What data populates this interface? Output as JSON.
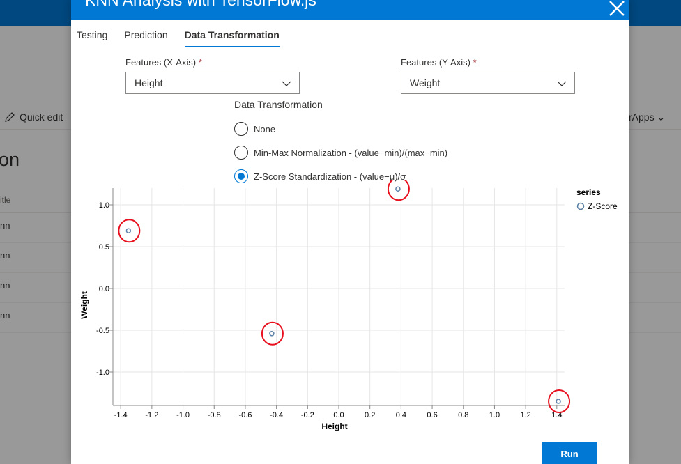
{
  "background": {
    "quick_edit_label": "Quick edit",
    "right_apps_label": "rApps",
    "page_title_fragment": "on",
    "column_header_fragment": "itle",
    "row_fragments": [
      "nn",
      "nn",
      "nn",
      "nn"
    ]
  },
  "dialog": {
    "title": "KNN Analysis with TensorFlow.js",
    "tabs": [
      {
        "label": "Testing",
        "active": false
      },
      {
        "label": "Prediction",
        "active": false
      },
      {
        "label": "Data Transformation",
        "active": true
      }
    ],
    "x_feature": {
      "label": "Features (X-Axis)",
      "required_mark": "*",
      "value": "Height"
    },
    "y_feature": {
      "label": "Features (Y-Axis)",
      "required_mark": "*",
      "value": "Weight"
    },
    "transformation": {
      "label": "Data Transformation",
      "options": [
        {
          "label": "None",
          "selected": false
        },
        {
          "label": "Min-Max Normalization - (value−min)/(max−min)",
          "selected": false
        },
        {
          "label": "Z-Score Standardization - (value−μ)/σ",
          "selected": true
        }
      ]
    },
    "run_label": "Run"
  },
  "chart_data": {
    "type": "scatter",
    "xlabel": "Height",
    "ylabel": "Weight",
    "xlim": [
      -1.45,
      1.45
    ],
    "ylim": [
      -1.4,
      1.2
    ],
    "x_ticks": [
      -1.4,
      -1.2,
      -1.0,
      -0.8,
      -0.6,
      -0.4,
      -0.2,
      0.0,
      0.2,
      0.4,
      0.6,
      0.8,
      1.0,
      1.2,
      1.4
    ],
    "y_ticks": [
      1.0,
      0.5,
      0.0,
      -0.5,
      -1.0
    ],
    "legend_title": "series",
    "legend_position": "top-right",
    "grid": true,
    "series": [
      {
        "name": "Z-Score",
        "color": "#5b7fa6",
        "points": [
          {
            "x": -1.35,
            "y": 0.69
          },
          {
            "x": -0.43,
            "y": -0.54
          },
          {
            "x": 0.38,
            "y": 1.19
          },
          {
            "x": 1.41,
            "y": -1.35
          }
        ]
      }
    ],
    "highlight_color": "#e8101e"
  }
}
